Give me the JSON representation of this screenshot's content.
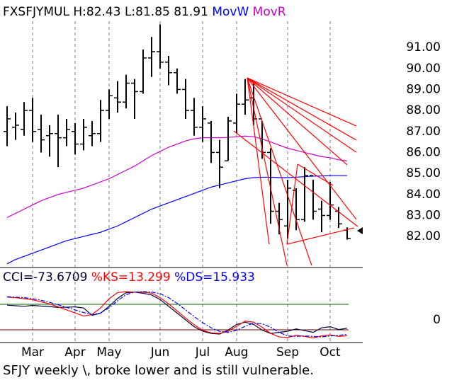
{
  "chart_data": [
    {
      "type": "ohlc",
      "title": "FXSFJYMUL H:82.43 L:81.85 81.91",
      "categories": [
        null,
        null,
        null,
        "Mar",
        null,
        null,
        null,
        null,
        "Apr",
        null,
        null,
        null,
        "May",
        null,
        null,
        null,
        null,
        null,
        "Jun",
        null,
        null,
        null,
        null,
        "Jul",
        null,
        null,
        null,
        "Aug",
        null,
        null,
        null,
        null,
        null,
        "Sep",
        null,
        null,
        null,
        null,
        "Oct",
        null,
        null
      ],
      "ohlc": {
        "open": [
          87.0,
          87.2,
          87.1,
          88.0,
          87.1,
          86.8,
          86.9,
          86.7,
          87.0,
          86.4,
          86.8,
          86.9,
          88.0,
          88.6,
          88.4,
          89.3,
          88.9,
          90.5,
          90.8,
          90.3,
          89.8,
          89.0,
          88.0,
          87.2,
          87.4,
          86.0,
          85.6,
          87.4,
          88.3,
          88.6,
          87.6,
          86.0,
          83.2,
          82.5,
          84.2,
          82.8,
          84.9,
          83.3,
          83.0,
          83.2,
          82.3
        ],
        "high": [
          88.2,
          87.9,
          88.4,
          88.6,
          87.8,
          87.3,
          87.8,
          87.6,
          87.4,
          87.6,
          87.5,
          88.5,
          89.0,
          89.4,
          89.7,
          89.5,
          90.9,
          91.5,
          92.1,
          90.6,
          90.0,
          89.5,
          88.6,
          88.2,
          87.5,
          86.6,
          87.7,
          88.8,
          89.5,
          89.3,
          87.5,
          86.2,
          83.6,
          84.7,
          84.3,
          85.3,
          84.7,
          83.7,
          84.6,
          83.4,
          82.43
        ],
        "low": [
          86.3,
          86.6,
          86.8,
          86.5,
          86.0,
          85.8,
          85.3,
          86.3,
          85.9,
          86.1,
          86.3,
          86.5,
          87.6,
          87.9,
          88.1,
          87.6,
          88.8,
          89.6,
          90.0,
          89.2,
          88.8,
          87.6,
          86.8,
          86.5,
          85.5,
          84.3,
          85.6,
          86.9,
          87.8,
          87.3,
          85.7,
          82.6,
          82.1,
          81.9,
          82.3,
          82.7,
          82.8,
          82.2,
          82.8,
          82.4,
          81.85
        ],
        "close": [
          87.6,
          87.3,
          88.0,
          87.0,
          86.6,
          86.9,
          86.7,
          87.1,
          86.4,
          87.2,
          86.9,
          88.0,
          88.7,
          88.4,
          89.3,
          88.9,
          90.5,
          90.8,
          90.3,
          89.8,
          89.0,
          88.0,
          87.2,
          87.6,
          86.0,
          85.3,
          87.5,
          88.3,
          88.5,
          87.6,
          86.0,
          83.2,
          82.8,
          84.3,
          82.8,
          84.9,
          83.2,
          83.0,
          83.5,
          82.6,
          81.91
        ]
      },
      "bar_color": "#000000",
      "series": [
        {
          "name": "MovW",
          "color": "#0000ff",
          "values": [
            80.7,
            80.9,
            81.05,
            81.2,
            81.35,
            81.5,
            81.65,
            81.8,
            81.9,
            82.0,
            82.1,
            82.2,
            82.35,
            82.5,
            82.7,
            82.9,
            83.1,
            83.3,
            83.45,
            83.6,
            83.75,
            83.9,
            84.05,
            84.2,
            84.35,
            84.45,
            84.55,
            84.65,
            84.75,
            84.8,
            84.82,
            84.82,
            84.8,
            84.8,
            84.82,
            84.85,
            84.87,
            84.88,
            84.9,
            84.9,
            84.9
          ]
        },
        {
          "name": "MovR",
          "color": "#cc00cc",
          "values": [
            82.9,
            83.1,
            83.3,
            83.5,
            83.7,
            83.85,
            84.0,
            84.1,
            84.2,
            84.3,
            84.45,
            84.6,
            84.75,
            84.95,
            85.15,
            85.35,
            85.6,
            85.85,
            86.05,
            86.25,
            86.4,
            86.55,
            86.65,
            86.7,
            86.7,
            86.7,
            86.72,
            86.75,
            86.78,
            86.75,
            86.65,
            86.5,
            86.35,
            86.2,
            86.1,
            86.0,
            85.9,
            85.8,
            85.75,
            85.65,
            85.6
          ]
        }
      ],
      "trendline_color": "#ff0000",
      "trendlines": [
        {
          "x": [
            28.25,
            41.08
          ],
          "y": [
            89.55,
            87.26
          ]
        },
        {
          "x": [
            28.25,
            41.08
          ],
          "y": [
            89.55,
            86.59
          ]
        },
        {
          "x": [
            28.25,
            41.08
          ],
          "y": [
            89.55,
            86.01
          ]
        },
        {
          "x": [
            28.25,
            40.0
          ],
          "y": [
            89.55,
            85.41
          ]
        },
        {
          "x": [
            28.25,
            41.08
          ],
          "y": [
            89.55,
            82.81
          ]
        },
        {
          "x": [
            28.25,
            35.83
          ],
          "y": [
            89.55,
            80.62
          ]
        },
        {
          "x": [
            28.25,
            32.92
          ],
          "y": [
            89.55,
            80.62
          ]
        },
        {
          "x": [
            28.25,
            30.83
          ],
          "y": [
            89.55,
            81.63
          ]
        },
        {
          "x": [
            26.67,
            41.25
          ],
          "y": [
            87.02,
            82.47
          ]
        },
        {
          "x": [
            34.17,
            38.33
          ],
          "y": [
            85.44,
            84.43
          ]
        },
        {
          "x": [
            32.92,
            40.83
          ],
          "y": [
            81.63,
            82.41
          ]
        },
        {
          "x": [
            34.17,
            32.92
          ],
          "y": [
            85.44,
            81.63
          ]
        }
      ],
      "ylim": [
        80.52,
        92.25
      ],
      "yticks": [
        {
          "value": 82,
          "label": "82.00"
        },
        {
          "value": 83,
          "label": "83.00"
        },
        {
          "value": 84,
          "label": "84.00"
        },
        {
          "value": 85,
          "label": "85.00"
        },
        {
          "value": 86,
          "label": "86.00"
        },
        {
          "value": 87,
          "label": "87.00"
        },
        {
          "value": 88,
          "label": "88.00"
        },
        {
          "value": 89,
          "label": "89.00"
        },
        {
          "value": 90,
          "label": "90.00"
        },
        {
          "value": 91,
          "label": "91.00"
        }
      ]
    },
    {
      "type": "line",
      "series": [
        {
          "name": "CCI=-73.6709",
          "color": "#000033",
          "axis": "y2",
          "values": [
            130,
            125,
            120,
            128,
            122,
            118,
            110,
            112,
            115,
            105,
            40,
            60,
            120,
            190,
            240,
            245,
            235,
            220,
            180,
            120,
            60,
            0,
            -60,
            -100,
            -120,
            -125,
            -90,
            -40,
            -20,
            -40,
            -90,
            -120,
            -110,
            -100,
            -80,
            -95,
            -110,
            -70,
            -60,
            -85,
            -73.6709
          ]
        },
        {
          "name": "%KS=13.299",
          "color": "#ff0000",
          "values": [
            89,
            88,
            86,
            84,
            80,
            76,
            70,
            64,
            58,
            52,
            55,
            68,
            86,
            98,
            100,
            99,
            99,
            97,
            88,
            76,
            62,
            48,
            35,
            24,
            19,
            18,
            22,
            32,
            42,
            40,
            30,
            18,
            11,
            10,
            14,
            12,
            9,
            13,
            15,
            12,
            13.299
          ]
        },
        {
          "name": "%DS=15.933",
          "color": "#0000ff",
          "dashed": true,
          "values": [
            90,
            89,
            88,
            86,
            83,
            79,
            74,
            69,
            64,
            59,
            55,
            58,
            68,
            82,
            94,
            99,
            100,
            99,
            96,
            88,
            77,
            64,
            51,
            39,
            29,
            22,
            20,
            24,
            32,
            38,
            37,
            30,
            20,
            13,
            12,
            13,
            12,
            11,
            13,
            14,
            15.933
          ]
        }
      ],
      "levels": [
        {
          "value": 75,
          "color": "#006600"
        },
        {
          "value": 25,
          "color": "#660000"
        }
      ],
      "ylim": [
        0,
        100
      ],
      "y2lim": [
        -200,
        250
      ],
      "y2ticks": [
        0
      ]
    }
  ],
  "caption": "SFJY weekly \\, broke lower and is still vulnerable."
}
